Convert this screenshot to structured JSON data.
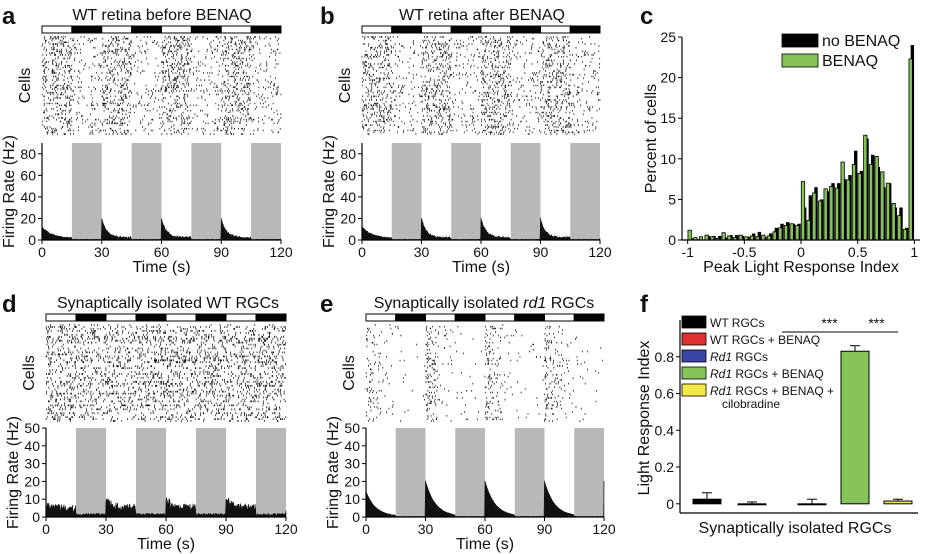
{
  "colors": {
    "gray_shade": "#b8b8b8",
    "raster": "#111111",
    "black_bar": "#000000",
    "green_bar": "#86c45a",
    "red_bar": "#e03030",
    "blue_bar": "#3a45a8",
    "yellow_bar": "#f3ea48"
  },
  "panels": {
    "a": {
      "letter": "a",
      "title": "WT retina before BENAQ"
    },
    "b": {
      "letter": "b",
      "title": "WT retina after BENAQ"
    },
    "c": {
      "letter": "c"
    },
    "d": {
      "letter": "d",
      "title": "Synaptically isolated WT RGCs"
    },
    "e": {
      "letter": "e",
      "title_prefix": "Synaptically isolated ",
      "title_italic": "rd1",
      "title_suffix": " RGCs"
    },
    "f": {
      "letter": "f"
    }
  },
  "labels": {
    "cells": "Cells",
    "firing_rate": "Firing Rate (Hz)",
    "time": "Time (s)"
  },
  "chart_data": [
    {
      "panel": "a",
      "type": "area",
      "title": "WT retina before BENAQ",
      "xlabel": "Time (s)",
      "ylabel": "Firing Rate (Hz)",
      "xlim": [
        0,
        120
      ],
      "ylim": [
        0,
        90
      ],
      "xticks": [
        0,
        30,
        60,
        90,
        120
      ],
      "yticks": [
        0,
        20,
        40,
        60,
        80
      ],
      "light_periods": [
        [
          15,
          30
        ],
        [
          45,
          60
        ],
        [
          75,
          90
        ],
        [
          105,
          120
        ]
      ],
      "response": {
        "baseline": 1.5,
        "peak": 18,
        "decay": 2.5
      }
    },
    {
      "panel": "b",
      "type": "area",
      "title": "WT retina after BENAQ",
      "xlabel": "Time (s)",
      "ylabel": "Firing Rate (Hz)",
      "xlim": [
        0,
        120
      ],
      "ylim": [
        0,
        90
      ],
      "xticks": [
        0,
        30,
        60,
        90,
        120
      ],
      "yticks": [
        0,
        20,
        40,
        60,
        80
      ],
      "light_periods": [
        [
          15,
          30
        ],
        [
          45,
          60
        ],
        [
          75,
          90
        ],
        [
          105,
          120
        ]
      ],
      "response": {
        "baseline": 1.5,
        "peak": 18,
        "decay": 2.5
      }
    },
    {
      "panel": "c",
      "type": "bar",
      "xlabel": "Peak Light Response Index",
      "ylabel": "Percent of cells",
      "xlim": [
        -1.05,
        1.05
      ],
      "ylim": [
        0,
        25
      ],
      "xticks": [
        -1,
        -0.5,
        0,
        0.5,
        1
      ],
      "xtick_labels": [
        "-1",
        "-0.5",
        "0",
        "0.5",
        "1"
      ],
      "yticks": [
        0,
        5,
        10,
        15,
        20,
        25
      ],
      "legend_position": "top-right",
      "bin_centers": [
        -0.975,
        -0.925,
        -0.875,
        -0.825,
        -0.775,
        -0.725,
        -0.675,
        -0.625,
        -0.575,
        -0.525,
        -0.475,
        -0.425,
        -0.375,
        -0.325,
        -0.275,
        -0.225,
        -0.175,
        -0.125,
        -0.075,
        -0.025,
        0.025,
        0.075,
        0.125,
        0.175,
        0.225,
        0.275,
        0.325,
        0.375,
        0.425,
        0.475,
        0.525,
        0.575,
        0.625,
        0.675,
        0.725,
        0.775,
        0.825,
        0.875,
        0.925,
        0.975
      ],
      "series": [
        {
          "name": "no BENAQ",
          "color": "#000000",
          "values": [
            0.2,
            0.1,
            0,
            0.5,
            0.5,
            0.5,
            0.3,
            0.6,
            0.6,
            0.5,
            0.4,
            0.8,
            1.0,
            0.4,
            0.8,
            1.5,
            2.0,
            2.2,
            2.0,
            2.0,
            4.0,
            5.5,
            6.5,
            5.0,
            6.0,
            7.0,
            7.0,
            7.5,
            8.0,
            11.0,
            8.5,
            12.5,
            10.5,
            9.0,
            6.5,
            7.0,
            4.0,
            4.0,
            1.5,
            24.0
          ]
        },
        {
          "name": "BENAQ",
          "color": "#86c45a",
          "values": [
            1.2,
            0.3,
            0.4,
            0.6,
            0.4,
            0.2,
            0.9,
            0.5,
            0.3,
            0.6,
            0.4,
            0.5,
            0.4,
            0.6,
            0.5,
            1.0,
            1.5,
            1.8,
            2.0,
            1.8,
            7.2,
            2.4,
            5.8,
            4.8,
            6.3,
            6.6,
            6.4,
            9.6,
            7.4,
            9.3,
            8.2,
            12.9,
            9.3,
            10.3,
            8.4,
            7.0,
            4.5,
            3.0,
            1.3,
            22.3
          ]
        }
      ]
    },
    {
      "panel": "d",
      "type": "area",
      "title": "Synaptically isolated WT RGCs",
      "xlabel": "Time (s)",
      "ylabel": "Firing Rate (Hz)",
      "xlim": [
        0,
        120
      ],
      "ylim": [
        0,
        50
      ],
      "xticks": [
        0,
        30,
        60,
        90,
        120
      ],
      "yticks": [
        0,
        10,
        20,
        30,
        40,
        50
      ],
      "light_periods": [
        [
          15,
          30
        ],
        [
          45,
          60
        ],
        [
          75,
          90
        ],
        [
          105,
          120
        ]
      ],
      "response": {
        "baseline": 4.5,
        "peak": 5,
        "decay": 3
      }
    },
    {
      "panel": "e",
      "type": "area",
      "title": "Synaptically isolated rd1 RGCs",
      "xlabel": "Time (s)",
      "ylabel": "Firing Rate (Hz)",
      "xlim": [
        0,
        120
      ],
      "ylim": [
        0,
        50
      ],
      "xticks": [
        0,
        30,
        60,
        90,
        120
      ],
      "yticks": [
        0,
        10,
        20,
        30,
        40,
        50
      ],
      "light_periods": [
        [
          15,
          30
        ],
        [
          45,
          60
        ],
        [
          75,
          90
        ],
        [
          105,
          120
        ]
      ],
      "response": {
        "baseline": 0.3,
        "peak": 20,
        "decay": 5
      }
    },
    {
      "panel": "f",
      "type": "bar",
      "xlabel": "Synaptically isolated RGCs",
      "ylabel": "Light Response Index",
      "ylim": [
        -0.05,
        1.0
      ],
      "yticks": [
        0,
        0.2,
        0.4,
        0.6,
        0.8
      ],
      "ytick_labels": [
        "0",
        "0.2",
        "0.4",
        "0.6",
        "0.8"
      ],
      "legend_position": "top-left",
      "categories": [
        {
          "name": "WT RGCs",
          "value": 0.025,
          "error": 0.035,
          "color": "#000000"
        },
        {
          "name": "WT RGCs + BENAQ",
          "value": 0.0,
          "error": 0.01,
          "color": "#e03030"
        },
        {
          "name_italic": "Rd1",
          "name": " RGCs",
          "value": 0.0,
          "error": 0.025,
          "color": "#3a45a8"
        },
        {
          "name_italic": "Rd1",
          "name": " RGCs + BENAQ",
          "value": 0.83,
          "error": 0.03,
          "color": "#86c45a"
        },
        {
          "name_italic": "Rd1",
          "name": " RGCs + BENAQ +",
          "name_line2": "cilobradine",
          "value": 0.015,
          "error": 0.01,
          "color": "#f3ea48"
        }
      ],
      "significance": [
        {
          "label": "***",
          "from": 2,
          "to": 3
        },
        {
          "label": "***",
          "from": 3,
          "to": 4
        }
      ]
    }
  ]
}
